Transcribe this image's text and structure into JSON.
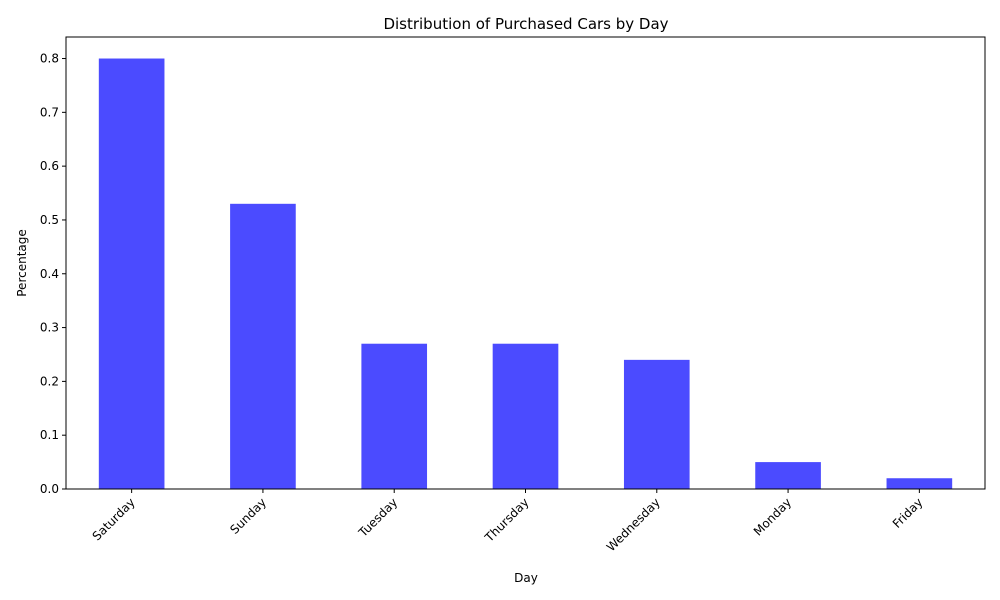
{
  "chart_data": {
    "type": "bar",
    "title": "Distribution of Purchased Cars by Day",
    "xlabel": "Day",
    "ylabel": "Percentage",
    "categories": [
      "Saturday",
      "Sunday",
      "Tuesday",
      "Thursday",
      "Wednesday",
      "Monday",
      "Friday"
    ],
    "values": [
      0.8,
      0.53,
      0.27,
      0.27,
      0.24,
      0.05,
      0.02
    ],
    "ylim": [
      0,
      0.84
    ],
    "yticks": [
      "0.0",
      "0.1",
      "0.2",
      "0.3",
      "0.4",
      "0.5",
      "0.6",
      "0.7",
      "0.8"
    ],
    "bar_color": "#4b4bff",
    "grid": false,
    "legend": "none"
  }
}
